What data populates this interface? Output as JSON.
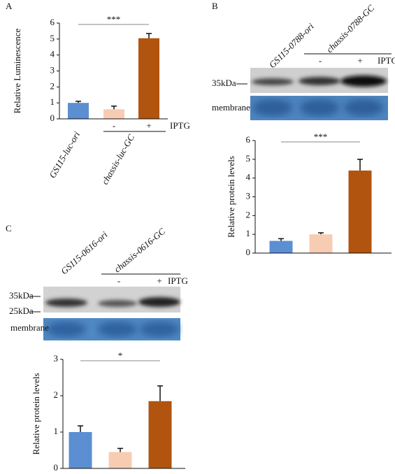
{
  "chart_data": [
    {
      "type": "bar",
      "panel": "A",
      "ylabel": "Relative Luminescence",
      "categories": [
        "GS115-luc-ori",
        "-",
        "+"
      ],
      "group": "chassis-luc-GC",
      "condition": "IPTG",
      "values": [
        1,
        0.6,
        5.05
      ],
      "errors": [
        0.1,
        0.2,
        0.3
      ],
      "colors": [
        "#5b8fd2",
        "#f8ccb3",
        "#b1540f"
      ],
      "ylim": [
        0,
        6
      ],
      "yticks": [
        0,
        1,
        2,
        3,
        4,
        5,
        6
      ],
      "significance": "***"
    },
    {
      "type": "bar",
      "panel": "B",
      "ylabel": "Relative protein levels",
      "categories": [
        null,
        null,
        null
      ],
      "values": [
        0.65,
        1,
        4.4
      ],
      "errors": [
        0.12,
        0.08,
        0.6
      ],
      "colors": [
        "#5b8fd2",
        "#f8ccb3",
        "#b1540f"
      ],
      "ylim": [
        0,
        6
      ],
      "yticks": [
        0,
        1,
        2,
        3,
        4,
        5,
        6
      ],
      "significance": "***"
    },
    {
      "type": "bar",
      "panel": "C",
      "ylabel": "Relative protein levels",
      "categories": [
        null,
        null,
        null
      ],
      "values": [
        1,
        0.45,
        1.85
      ],
      "errors": [
        0.17,
        0.1,
        0.42
      ],
      "colors": [
        "#5b8fd2",
        "#f8ccb3",
        "#b1540f"
      ],
      "ylim": [
        0,
        3
      ],
      "yticks": [
        0,
        1,
        2,
        3
      ],
      "significance": "*"
    }
  ],
  "blots": [
    {
      "lane": "GS115-0788-ori",
      "group": "chassis-0788-GC",
      "signs": [
        "-",
        "+"
      ],
      "condition": "IPTG",
      "markers": [
        "35kDa"
      ],
      "membrane": "membrane"
    },
    {
      "lane": "GS115-0616-ori",
      "group": "chassis-0616-GC",
      "signs": [
        "-",
        "+"
      ],
      "condition": "IPTG",
      "markers": [
        "35kDa",
        "25kDa"
      ],
      "membrane": "membrane"
    }
  ]
}
